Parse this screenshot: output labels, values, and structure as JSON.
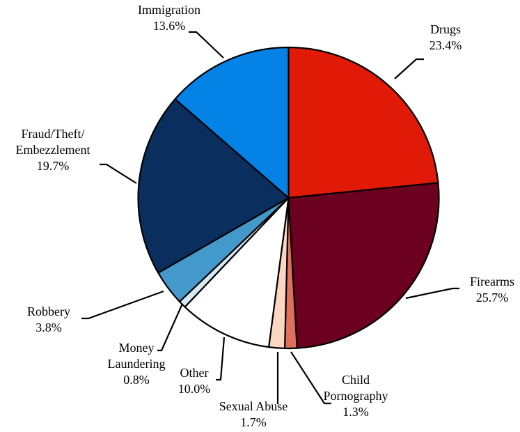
{
  "chart_data": {
    "type": "pie",
    "title": "",
    "slices": [
      {
        "label_lines": [
          "Drugs"
        ],
        "value": 23.4,
        "value_text": "23.4%",
        "color": "#e01a06"
      },
      {
        "label_lines": [
          "Firearms"
        ],
        "value": 25.7,
        "value_text": "25.7%",
        "color": "#6b0020"
      },
      {
        "label_lines": [
          "Child",
          "Pornography"
        ],
        "value": 1.3,
        "value_text": "1.3%",
        "color": "#e0705a"
      },
      {
        "label_lines": [
          "Sexual Abuse"
        ],
        "value": 1.7,
        "value_text": "1.7%",
        "color": "#fbd6c0"
      },
      {
        "label_lines": [
          "Other"
        ],
        "value": 10.0,
        "value_text": "10.0%",
        "color": "#ffffff"
      },
      {
        "label_lines": [
          "Money",
          "Laundering"
        ],
        "value": 0.8,
        "value_text": "0.8%",
        "color": "#d5e8f3"
      },
      {
        "label_lines": [
          "Robbery"
        ],
        "value": 3.8,
        "value_text": "3.8%",
        "color": "#4499cc"
      },
      {
        "label_lines": [
          "Fraud/Theft/",
          "Embezzlement"
        ],
        "value": 19.7,
        "value_text": "19.7%",
        "color": "#0a2f5e"
      },
      {
        "label_lines": [
          "Immigration"
        ],
        "value": 13.6,
        "value_text": "13.6%",
        "color": "#0582e6"
      }
    ],
    "start_angle_deg": 0,
    "direction": "clockwise",
    "legend": "none"
  }
}
